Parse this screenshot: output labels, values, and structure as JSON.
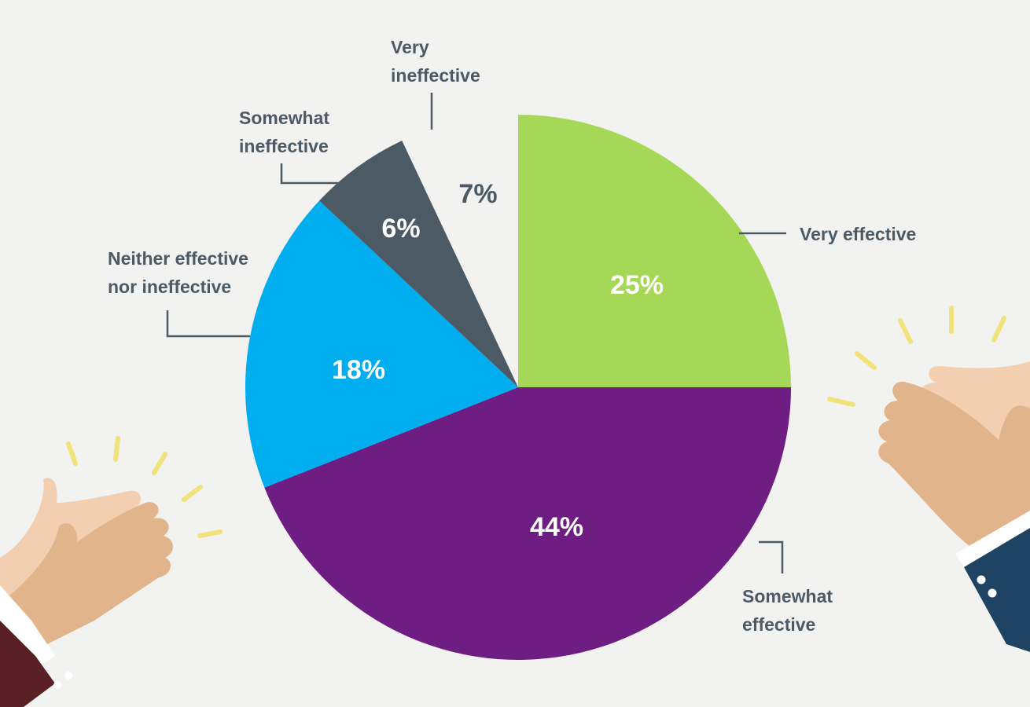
{
  "chart_data": {
    "type": "pie",
    "title": "",
    "start": "12 o'clock",
    "direction": "clockwise",
    "slices": [
      {
        "label_lines": [
          "Very effective"
        ],
        "value": 25,
        "value_label": "25%",
        "color": "#a6d857",
        "value_color": "#ffffff"
      },
      {
        "label_lines": [
          "Somewhat",
          "effective"
        ],
        "value": 44,
        "value_label": "44%",
        "color": "#6e1d82",
        "value_color": "#ffffff"
      },
      {
        "label_lines": [
          "Neither effective",
          "nor ineffective"
        ],
        "value": 18,
        "value_label": "18%",
        "color": "#00adef",
        "value_color": "#ffffff"
      },
      {
        "label_lines": [
          "Somewhat",
          "ineffective"
        ],
        "value": 6,
        "value_label": "6%",
        "color": "#4b5a64",
        "value_color": "#ffffff"
      },
      {
        "label_lines": [
          "Very",
          "ineffective"
        ],
        "value": 7,
        "value_label": "7%",
        "color": "none",
        "value_color": "#4b5a64"
      }
    ]
  },
  "colors": {
    "background": "#f2f2f0",
    "label_text": "#4b5a64",
    "leader_line": "#4b5a64",
    "skin_light": "#f2cfb0",
    "skin_dark": "#e2b48c",
    "cuff": "#ffffff",
    "sleeve_left": "#5a2026",
    "sleeve_right": "#1f4463",
    "sparkle": "#f1e27a"
  }
}
